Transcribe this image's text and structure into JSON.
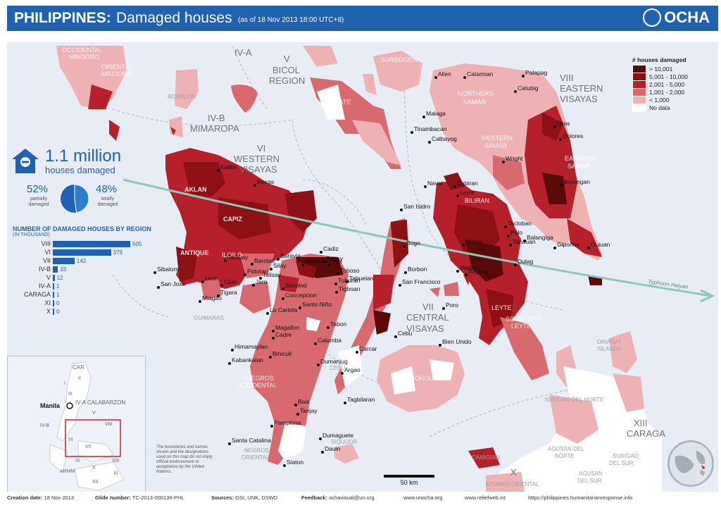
{
  "header": {
    "title": "PHILIPPINES:",
    "subtitle": "Damaged houses",
    "date_note": "(as of 18 Nov 2013 18:00 UTC+8)",
    "logo_text": "OCHA",
    "bg_color": "#1f63b0"
  },
  "kpi": {
    "number": "1.1 million",
    "label": "houses damaged",
    "icon": "house-icon"
  },
  "pie": {
    "partially_pct": "52%",
    "partially_label": "partially\ndamaged",
    "totally_pct": "48%",
    "totally_label": "totally\ndamaged",
    "partially_value": 52,
    "totally_value": 48
  },
  "chart_data": {
    "type": "bar",
    "title": "NUMBER OF DAMAGED HOUSES BY REGION",
    "subtitle": "(IN THOUSAND)",
    "categories": [
      "VIII",
      "VI",
      "VII",
      "IV-B",
      "V",
      "IV-A",
      "CARAGA",
      "XI",
      "X"
    ],
    "values": [
      505,
      379,
      142,
      33,
      12,
      1,
      1,
      0,
      0
    ],
    "orientation": "horizontal"
  },
  "legend": {
    "title": "# houses damaged",
    "items": [
      {
        "label": "> 10,001",
        "color": "#5b0a0a"
      },
      {
        "label": "5,001 - 10,000",
        "color": "#8c1014"
      },
      {
        "label": "2,001 - 5,000",
        "color": "#b5202a"
      },
      {
        "label": "1,001 - 2,000",
        "color": "#d86a6f"
      },
      {
        "label": "< 1,000",
        "color": "#efb2b4"
      },
      {
        "label": "No data",
        "color": "#ffffff"
      }
    ]
  },
  "regions": {
    "r_iva": "IV-A",
    "r_v": "V",
    "r_v_name": "BICOL",
    "r_v_name2": "REGION",
    "r_ivb": "IV-B",
    "r_ivb_name": "MIMAROPA",
    "r_vi": "VI",
    "r_vi_name": "WESTERN",
    "r_vi_name2": "VISAYAS",
    "r_vii": "VII",
    "r_vii_name": "CENTRAL",
    "r_vii_name2": "VISAYAS",
    "r_viii": "VIII",
    "r_viii_name": "EASTERN",
    "r_viii_name2": "VISAYAS",
    "r_xiii": "XIII",
    "r_xiii_name": "CARAGA",
    "r_x": "X"
  },
  "provinces": {
    "occidental_mindoro": "OCCIDENTAL",
    "occidental_mindoro2": "MINDORO",
    "oriental_mindoro": "ORIENTAL",
    "oriental_mindoro2": "MINDORO",
    "romblon": "ROMBLON",
    "masbate": "MASBATE",
    "sorsogon": "SORSOGON",
    "northern_samar": "NORTHERN",
    "northern_samar2": "SAMAR",
    "western_samar": "WESTERN",
    "western_samar2": "SAMAR",
    "eastern_samar": "EASTERN",
    "eastern_samar2": "SAMAR",
    "aklan": "AKLAN",
    "capiz": "CAPIZ",
    "antique": "ANTIQUE",
    "iloilo": "ILOILO",
    "guimaras": "GUIMARAS",
    "negros_occidental": "NEGROS",
    "negros_occidental2": "OCCIDENTAL",
    "negros_oriental": "NEGROS",
    "negros_oriental2": "ORIENTAL",
    "cebu": "CEBU",
    "bohol": "BOHOL",
    "biliran": "BILIRAN",
    "leyte": "LEYTE",
    "southern_leyte": "SOUTHERN",
    "southern_leyte2": "LEYTE",
    "dinagat": "DINAGAT",
    "dinagat2": "ISLANDS",
    "siquijor": "SIQUIJOR",
    "camiguin": "CAMIGUIN",
    "surigao_norte": "SURIGAO DEL NORTE",
    "agusan_norte": "AGUSAN DEL",
    "agusan_norte2": "NORTE",
    "surigao_sur": "SURIGAO",
    "surigao_sur2": "DEL SUR",
    "agusan_sur": "AGUSAN",
    "agusan_sur2": "DEL SUR",
    "misamis": "MISAMIS ORIENTAL"
  },
  "places": [
    "Allen",
    "Catarman",
    "Palapag",
    "Catubig",
    "Malaga",
    "Tinambacan",
    "Calbayog",
    "Oras",
    "Dolores",
    "Wright",
    "Borongan",
    "Naval",
    "Cabiran",
    "Leyte",
    "San Isidro",
    "Bogo",
    "Tacloban",
    "Palo",
    "Tanauan",
    "Balangiga",
    "Giporlos",
    "Guiuan",
    "Merida",
    "Dulag",
    "Ormoc",
    "Baybay",
    "Borbon",
    "San Francisco",
    "Poro",
    "Cebu",
    "Bien Unido",
    "Kalibo",
    "Roxas",
    "Sibalom",
    "San Jose",
    "Leon",
    "Oton",
    "Tigara",
    "Miagao",
    "Janiuay",
    "Saravia",
    "Silay",
    "Talisay",
    "Jaro",
    "Bacolod",
    "Concepcion",
    "Cadiz",
    "Victorias",
    "Vito",
    "Toboso",
    "Tuburan",
    "Tigboan",
    "La Carlota",
    "Santo Niño",
    "Magallon",
    "Cadre",
    "Himamaylan",
    "Binicuil",
    "Kabankalan",
    "Calamba",
    "Carcar",
    "Dumanjug",
    "Argao",
    "Tagbilaran",
    "Bais",
    "Tanjay",
    "Pamplona",
    "Dumaguete",
    "Santa Catalina",
    "Dauin",
    "Siaton",
    "Tabon",
    "Sagay",
    "Pototan",
    "Barotac",
    "Tabuelan"
  ],
  "typhoon_label": "Typhoon Haiyan",
  "inset": {
    "car": "CAR",
    "ii": "II",
    "i": "I",
    "iii": "III",
    "manila": "Manila",
    "iva_cal": "IV-A CALABARZON",
    "v": "V",
    "ivb": "IV-B",
    "viii": "VIII",
    "vi": "VI",
    "vii": "VII",
    "ix": "IX",
    "xiii": "XIII",
    "armm": "ARMM",
    "x": "X",
    "xi": "XI",
    "xii": "XII"
  },
  "disclaimer": "The boundaries and names shown and the designations used on this map do not imply official endorsement or acceptance by the United Nations.",
  "scale_label": "50 km",
  "footer": {
    "creation_label": "Creation date:",
    "creation_value": "18 Nov 2013",
    "glide_label": "Glide number:",
    "glide_value": "TC-2013-000139-PHL",
    "sources_label": "Sources:",
    "sources_value": "GSI, UNK, DSWD",
    "feedback_label": "Feedback:",
    "feedback_value": "ochavisual@un.org",
    "url1": "www.unocha.org",
    "url2": "www.reliefweb.int",
    "url3": "https://philippines.humanitarianresponse.info"
  }
}
